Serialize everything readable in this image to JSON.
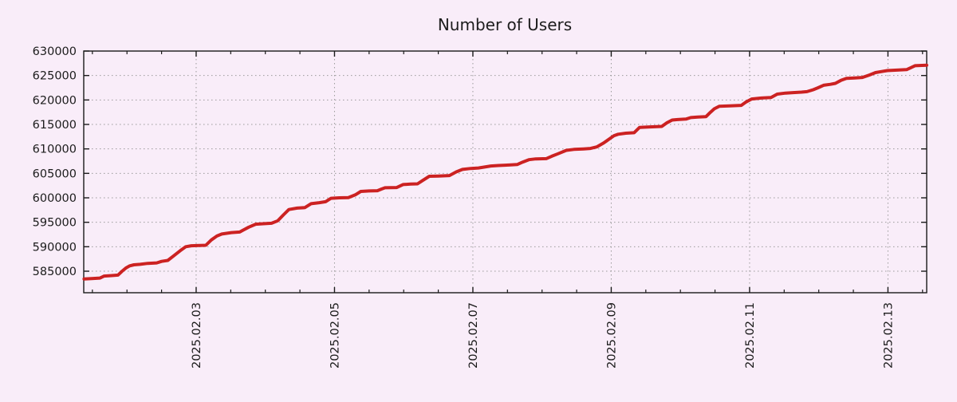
{
  "title": "Number of Users",
  "colors": {
    "background": "#f9edf9",
    "line": "#cc2222",
    "frame": "#1a1a1a",
    "grid": "#9a9a9a",
    "text": "#1c1c1c"
  },
  "chart_data": {
    "type": "line",
    "title": "Number of Users",
    "legend": null,
    "grid": true,
    "x_axis": {
      "unit": "days since 2025-02-01 00:00",
      "range": [
        0.375,
        12.56
      ],
      "minor_tick_interval": 0.5,
      "label_rotation_deg": -90,
      "major_ticks": [
        {
          "t": 2,
          "label": "2025.02.03"
        },
        {
          "t": 4,
          "label": "2025.02.05"
        },
        {
          "t": 6,
          "label": "2025.02.07"
        },
        {
          "t": 8,
          "label": "2025.02.09"
        },
        {
          "t": 10,
          "label": "2025.02.11"
        },
        {
          "t": 12,
          "label": "2025.02.13"
        }
      ]
    },
    "y_axis": {
      "range": [
        580600,
        630000
      ],
      "ticks": [
        585000,
        590000,
        595000,
        600000,
        605000,
        610000,
        615000,
        620000,
        625000,
        630000
      ]
    },
    "series": [
      {
        "name": "users",
        "color": "#cc2222",
        "points": [
          [
            0.38,
            583400
          ],
          [
            0.49,
            583500
          ],
          [
            0.61,
            583600
          ],
          [
            0.67,
            584000
          ],
          [
            0.78,
            584100
          ],
          [
            0.87,
            584200
          ],
          [
            0.93,
            585000
          ],
          [
            0.99,
            585700
          ],
          [
            1.04,
            586100
          ],
          [
            1.1,
            586300
          ],
          [
            1.19,
            586400
          ],
          [
            1.3,
            586600
          ],
          [
            1.43,
            586700
          ],
          [
            1.5,
            587000
          ],
          [
            1.59,
            587200
          ],
          [
            1.68,
            588200
          ],
          [
            1.77,
            589200
          ],
          [
            1.85,
            590000
          ],
          [
            1.93,
            590200
          ],
          [
            2.05,
            590250
          ],
          [
            2.14,
            590300
          ],
          [
            2.22,
            591400
          ],
          [
            2.3,
            592200
          ],
          [
            2.37,
            592600
          ],
          [
            2.51,
            592900
          ],
          [
            2.63,
            593000
          ],
          [
            2.68,
            593400
          ],
          [
            2.76,
            594000
          ],
          [
            2.86,
            594600
          ],
          [
            2.97,
            594700
          ],
          [
            3.09,
            594800
          ],
          [
            3.18,
            595300
          ],
          [
            3.26,
            596500
          ],
          [
            3.34,
            597600
          ],
          [
            3.46,
            597900
          ],
          [
            3.57,
            598000
          ],
          [
            3.66,
            598800
          ],
          [
            3.78,
            599000
          ],
          [
            3.87,
            599200
          ],
          [
            3.95,
            599900
          ],
          [
            4.07,
            600000
          ],
          [
            4.2,
            600050
          ],
          [
            4.3,
            600600
          ],
          [
            4.38,
            601300
          ],
          [
            4.5,
            601400
          ],
          [
            4.62,
            601450
          ],
          [
            4.68,
            601800
          ],
          [
            4.73,
            602050
          ],
          [
            4.9,
            602100
          ],
          [
            4.99,
            602700
          ],
          [
            5.1,
            602800
          ],
          [
            5.2,
            602850
          ],
          [
            5.28,
            603600
          ],
          [
            5.37,
            604400
          ],
          [
            5.5,
            604450
          ],
          [
            5.66,
            604550
          ],
          [
            5.76,
            605300
          ],
          [
            5.85,
            605800
          ],
          [
            5.97,
            606000
          ],
          [
            6.08,
            606100
          ],
          [
            6.17,
            606300
          ],
          [
            6.26,
            606500
          ],
          [
            6.37,
            606600
          ],
          [
            6.52,
            606700
          ],
          [
            6.64,
            606800
          ],
          [
            6.72,
            607300
          ],
          [
            6.81,
            607800
          ],
          [
            6.91,
            607950
          ],
          [
            7.06,
            608000
          ],
          [
            7.14,
            608500
          ],
          [
            7.23,
            609000
          ],
          [
            7.35,
            609700
          ],
          [
            7.46,
            609900
          ],
          [
            7.6,
            610000
          ],
          [
            7.7,
            610100
          ],
          [
            7.79,
            610400
          ],
          [
            7.89,
            611200
          ],
          [
            7.98,
            612100
          ],
          [
            8.04,
            612700
          ],
          [
            8.1,
            613000
          ],
          [
            8.21,
            613200
          ],
          [
            8.33,
            613300
          ],
          [
            8.41,
            614400
          ],
          [
            8.56,
            614500
          ],
          [
            8.73,
            614600
          ],
          [
            8.8,
            615300
          ],
          [
            8.88,
            615900
          ],
          [
            8.96,
            616000
          ],
          [
            9.08,
            616100
          ],
          [
            9.15,
            616400
          ],
          [
            9.25,
            616500
          ],
          [
            9.37,
            616600
          ],
          [
            9.42,
            617300
          ],
          [
            9.49,
            618200
          ],
          [
            9.56,
            618700
          ],
          [
            9.71,
            618800
          ],
          [
            9.88,
            618900
          ],
          [
            9.95,
            619600
          ],
          [
            10.03,
            620200
          ],
          [
            10.17,
            620400
          ],
          [
            10.31,
            620500
          ],
          [
            10.4,
            621200
          ],
          [
            10.52,
            621400
          ],
          [
            10.63,
            621500
          ],
          [
            10.75,
            621600
          ],
          [
            10.83,
            621700
          ],
          [
            10.92,
            622100
          ],
          [
            10.99,
            622500
          ],
          [
            11.07,
            623000
          ],
          [
            11.17,
            623200
          ],
          [
            11.24,
            623400
          ],
          [
            11.32,
            624000
          ],
          [
            11.4,
            624400
          ],
          [
            11.52,
            624500
          ],
          [
            11.63,
            624600
          ],
          [
            11.73,
            625100
          ],
          [
            11.82,
            625600
          ],
          [
            11.9,
            625800
          ],
          [
            11.99,
            626000
          ],
          [
            12.13,
            626100
          ],
          [
            12.27,
            626200
          ],
          [
            12.33,
            626600
          ],
          [
            12.39,
            627000
          ],
          [
            12.56,
            627100
          ]
        ]
      }
    ]
  }
}
